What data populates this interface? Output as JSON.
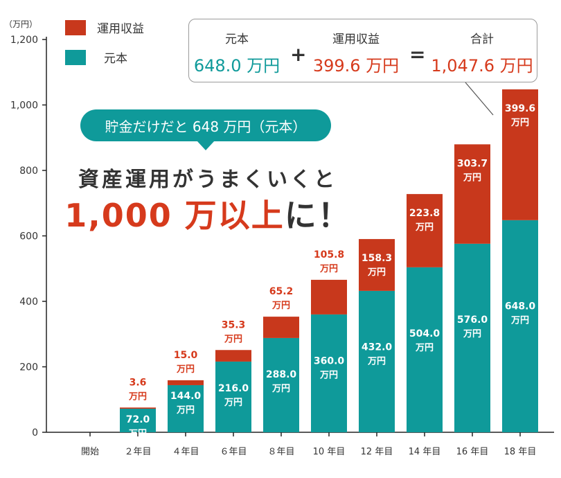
{
  "colors": {
    "teal": "#0f9a9a",
    "red": "#c8381c",
    "red_text": "#d63a1c",
    "axis": "#222222",
    "text": "#333333"
  },
  "unit_label": "（万円）",
  "legend": [
    {
      "label": "運用収益",
      "color": "#c8381c"
    },
    {
      "label": "元本",
      "color": "#0f9a9a"
    }
  ],
  "summary": {
    "principal_label": "元本",
    "principal_value": "648.0 万円",
    "plus": "+",
    "earnings_label": "運用収益",
    "earnings_value": "399.6 万円",
    "equals": "=",
    "total_label": "合計",
    "total_value": "1,047.6 万円"
  },
  "callout": "貯金だけだと 648 万円（元本）",
  "headline": {
    "line1": "資産運用がうまくいくと",
    "line2_red": "1,000 万以上",
    "line2_dark": "に！"
  },
  "chart_data": {
    "type": "bar",
    "stacked": true,
    "categories": [
      "開始",
      "２年目",
      "４年目",
      "６年目",
      "８年目",
      "10 年目",
      "12 年目",
      "14 年目",
      "16 年目",
      "18 年目"
    ],
    "series": [
      {
        "name": "元本",
        "values": [
          0,
          72.0,
          144.0,
          216.0,
          288.0,
          360.0,
          432.0,
          504.0,
          576.0,
          648.0
        ]
      },
      {
        "name": "運用収益",
        "values": [
          0,
          3.6,
          15.0,
          35.3,
          65.2,
          105.8,
          158.3,
          223.8,
          303.7,
          399.6
        ]
      }
    ],
    "value_labels_principal": [
      "",
      "72.0",
      "144.0",
      "216.0",
      "288.0",
      "360.0",
      "432.0",
      "504.0",
      "576.0",
      "648.0"
    ],
    "value_labels_earnings": [
      "",
      "3.6",
      "15.0",
      "35.3",
      "65.2",
      "105.8",
      "158.3",
      "223.8",
      "303.7",
      "399.6"
    ],
    "value_unit": "万円",
    "yticks": [
      0,
      200,
      400,
      600,
      800,
      1000,
      1200
    ],
    "ytick_labels": [
      "0",
      "200",
      "400",
      "600",
      "800",
      "1,000",
      "1,200"
    ],
    "ylim": [
      0,
      1200
    ],
    "grid": false,
    "legend_position": "top-left"
  }
}
